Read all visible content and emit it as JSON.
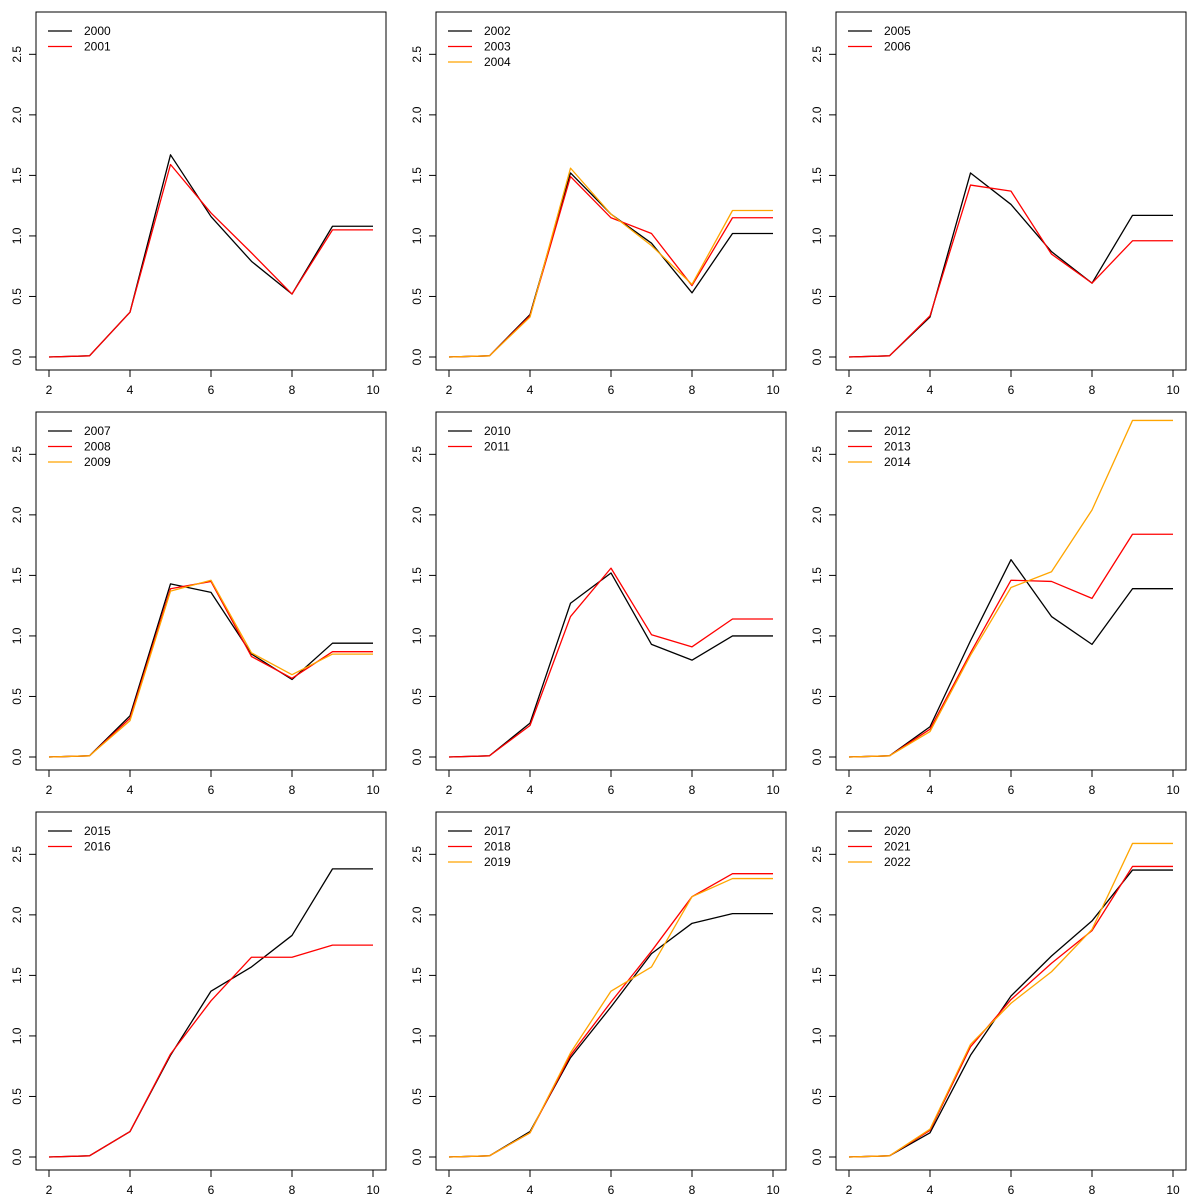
{
  "chart_data": [
    {
      "type": "line",
      "x": [
        2,
        3,
        4,
        5,
        6,
        7,
        8,
        9,
        10
      ],
      "xlim": [
        2,
        10
      ],
      "ylim": [
        0,
        2.8
      ],
      "xticks": [
        "2",
        "4",
        "6",
        "8",
        "10"
      ],
      "yticks": [
        "0.0",
        "0.5",
        "1.0",
        "1.5",
        "2.0",
        "2.5"
      ],
      "legend_position": "top-left",
      "series": [
        {
          "name": "2000",
          "color": "#000000",
          "values": [
            0,
            0.01,
            0.37,
            1.67,
            1.16,
            0.79,
            0.52,
            1.08,
            1.08
          ]
        },
        {
          "name": "2001",
          "color": "#ff0000",
          "values": [
            0,
            0.01,
            0.37,
            1.59,
            1.19,
            0.86,
            0.52,
            1.05,
            1.05
          ]
        }
      ]
    },
    {
      "type": "line",
      "x": [
        2,
        3,
        4,
        5,
        6,
        7,
        8,
        9,
        10
      ],
      "xlim": [
        2,
        10
      ],
      "ylim": [
        0,
        2.8
      ],
      "xticks": [
        "2",
        "4",
        "6",
        "8",
        "10"
      ],
      "yticks": [
        "0.0",
        "0.5",
        "1.0",
        "1.5",
        "2.0",
        "2.5"
      ],
      "legend_position": "top-left",
      "series": [
        {
          "name": "2002",
          "color": "#000000",
          "values": [
            0,
            0.01,
            0.35,
            1.52,
            1.18,
            0.94,
            0.53,
            1.02,
            1.02
          ]
        },
        {
          "name": "2003",
          "color": "#ff0000",
          "values": [
            0,
            0.01,
            0.34,
            1.49,
            1.15,
            1.02,
            0.59,
            1.15,
            1.15
          ]
        },
        {
          "name": "2004",
          "color": "#ffa500",
          "values": [
            0,
            0.01,
            0.33,
            1.56,
            1.18,
            0.92,
            0.6,
            1.21,
            1.21
          ]
        }
      ]
    },
    {
      "type": "line",
      "x": [
        2,
        3,
        4,
        5,
        6,
        7,
        8,
        9,
        10
      ],
      "xlim": [
        2,
        10
      ],
      "ylim": [
        0,
        2.8
      ],
      "xticks": [
        "2",
        "4",
        "6",
        "8",
        "10"
      ],
      "yticks": [
        "0.0",
        "0.5",
        "1.0",
        "1.5",
        "2.0",
        "2.5"
      ],
      "legend_position": "top-left",
      "series": [
        {
          "name": "2005",
          "color": "#000000",
          "values": [
            0,
            0.01,
            0.33,
            1.52,
            1.26,
            0.87,
            0.61,
            1.17,
            1.17
          ]
        },
        {
          "name": "2006",
          "color": "#ff0000",
          "values": [
            0,
            0.01,
            0.34,
            1.42,
            1.37,
            0.85,
            0.61,
            0.96,
            0.96
          ]
        }
      ]
    },
    {
      "type": "line",
      "x": [
        2,
        3,
        4,
        5,
        6,
        7,
        8,
        9,
        10
      ],
      "xlim": [
        2,
        10
      ],
      "ylim": [
        0,
        2.8
      ],
      "xticks": [
        "2",
        "4",
        "6",
        "8",
        "10"
      ],
      "yticks": [
        "0.0",
        "0.5",
        "1.0",
        "1.5",
        "2.0",
        "2.5"
      ],
      "legend_position": "top-left",
      "series": [
        {
          "name": "2007",
          "color": "#000000",
          "values": [
            0,
            0.01,
            0.34,
            1.43,
            1.36,
            0.85,
            0.64,
            0.94,
            0.94
          ]
        },
        {
          "name": "2008",
          "color": "#ff0000",
          "values": [
            0,
            0.01,
            0.32,
            1.39,
            1.45,
            0.83,
            0.65,
            0.87,
            0.87
          ]
        },
        {
          "name": "2009",
          "color": "#ffa500",
          "values": [
            0,
            0.01,
            0.3,
            1.37,
            1.46,
            0.86,
            0.68,
            0.85,
            0.85
          ]
        }
      ]
    },
    {
      "type": "line",
      "x": [
        2,
        3,
        4,
        5,
        6,
        7,
        8,
        9,
        10
      ],
      "xlim": [
        2,
        10
      ],
      "ylim": [
        0,
        2.8
      ],
      "xticks": [
        "2",
        "4",
        "6",
        "8",
        "10"
      ],
      "yticks": [
        "0.0",
        "0.5",
        "1.0",
        "1.5",
        "2.0",
        "2.5"
      ],
      "legend_position": "top-left",
      "series": [
        {
          "name": "2010",
          "color": "#000000",
          "values": [
            0,
            0.01,
            0.28,
            1.27,
            1.52,
            0.93,
            0.8,
            1.0,
            1.0
          ]
        },
        {
          "name": "2011",
          "color": "#ff0000",
          "values": [
            0,
            0.01,
            0.26,
            1.16,
            1.56,
            1.01,
            0.91,
            1.14,
            1.14
          ]
        }
      ]
    },
    {
      "type": "line",
      "x": [
        2,
        3,
        4,
        5,
        6,
        7,
        8,
        9,
        10
      ],
      "xlim": [
        2,
        10
      ],
      "ylim": [
        0,
        2.8
      ],
      "xticks": [
        "2",
        "4",
        "6",
        "8",
        "10"
      ],
      "yticks": [
        "0.0",
        "0.5",
        "1.0",
        "1.5",
        "2.0",
        "2.5"
      ],
      "legend_position": "top-left",
      "series": [
        {
          "name": "2012",
          "color": "#000000",
          "values": [
            0,
            0.01,
            0.25,
            0.96,
            1.63,
            1.16,
            0.93,
            1.39,
            1.39
          ]
        },
        {
          "name": "2013",
          "color": "#ff0000",
          "values": [
            0,
            0.01,
            0.23,
            0.86,
            1.46,
            1.45,
            1.31,
            1.84,
            1.84
          ]
        },
        {
          "name": "2014",
          "color": "#ffa500",
          "values": [
            0,
            0.01,
            0.21,
            0.84,
            1.4,
            1.53,
            2.04,
            2.78,
            2.78
          ]
        }
      ]
    },
    {
      "type": "line",
      "x": [
        2,
        3,
        4,
        5,
        6,
        7,
        8,
        9,
        10
      ],
      "xlim": [
        2,
        10
      ],
      "ylim": [
        0,
        2.8
      ],
      "xticks": [
        "2",
        "4",
        "6",
        "8",
        "10"
      ],
      "yticks": [
        "0.0",
        "0.5",
        "1.0",
        "1.5",
        "2.0",
        "2.5"
      ],
      "legend_position": "top-left",
      "series": [
        {
          "name": "2015",
          "color": "#000000",
          "values": [
            0,
            0.01,
            0.21,
            0.84,
            1.37,
            1.57,
            1.83,
            2.38,
            2.38
          ]
        },
        {
          "name": "2016",
          "color": "#ff0000",
          "values": [
            0,
            0.01,
            0.21,
            0.85,
            1.29,
            1.65,
            1.65,
            1.75,
            1.75
          ]
        }
      ]
    },
    {
      "type": "line",
      "x": [
        2,
        3,
        4,
        5,
        6,
        7,
        8,
        9,
        10
      ],
      "xlim": [
        2,
        10
      ],
      "ylim": [
        0,
        2.8
      ],
      "xticks": [
        "2",
        "4",
        "6",
        "8",
        "10"
      ],
      "yticks": [
        "0.0",
        "0.5",
        "1.0",
        "1.5",
        "2.0",
        "2.5"
      ],
      "legend_position": "top-left",
      "series": [
        {
          "name": "2017",
          "color": "#000000",
          "values": [
            0,
            0.01,
            0.21,
            0.82,
            1.24,
            1.68,
            1.93,
            2.01,
            2.01
          ]
        },
        {
          "name": "2018",
          "color": "#ff0000",
          "values": [
            0,
            0.01,
            0.2,
            0.84,
            1.28,
            1.7,
            2.15,
            2.34,
            2.34
          ]
        },
        {
          "name": "2019",
          "color": "#ffa500",
          "values": [
            0,
            0.01,
            0.2,
            0.86,
            1.37,
            1.57,
            2.15,
            2.3,
            2.3
          ]
        }
      ]
    },
    {
      "type": "line",
      "x": [
        2,
        3,
        4,
        5,
        6,
        7,
        8,
        9,
        10
      ],
      "xlim": [
        2,
        10
      ],
      "ylim": [
        0,
        2.8
      ],
      "xticks": [
        "2",
        "4",
        "6",
        "8",
        "10"
      ],
      "yticks": [
        "0.0",
        "0.5",
        "1.0",
        "1.5",
        "2.0",
        "2.5"
      ],
      "legend_position": "top-left",
      "series": [
        {
          "name": "2020",
          "color": "#000000",
          "values": [
            0,
            0.01,
            0.2,
            0.84,
            1.33,
            1.66,
            1.95,
            2.37,
            2.37
          ]
        },
        {
          "name": "2021",
          "color": "#ff0000",
          "values": [
            0,
            0.01,
            0.22,
            0.91,
            1.3,
            1.6,
            1.87,
            2.4,
            2.4
          ]
        },
        {
          "name": "2022",
          "color": "#ffa500",
          "values": [
            0,
            0.01,
            0.23,
            0.93,
            1.27,
            1.53,
            1.88,
            2.59,
            2.59
          ]
        }
      ]
    }
  ]
}
